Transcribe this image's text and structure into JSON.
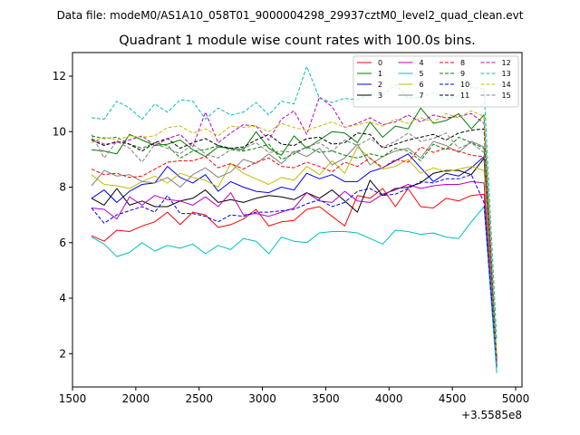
{
  "figure": {
    "suptitle": "Data file: modeM0/AS1A10_058T01_9000004298_29937cztM0_level2_quad_clean.evt"
  },
  "chart_data": {
    "type": "line",
    "title": "Quadrant 1 module wise count rates with 100.0s bins.",
    "xlabel": "",
    "ylabel": "",
    "x_offset_label": "+3.5585e8",
    "xlim": [
      1500,
      5050
    ],
    "ylim": [
      0.8,
      12.85
    ],
    "xticks": [
      1500,
      2000,
      2500,
      3000,
      3500,
      4000,
      4500,
      5000
    ],
    "yticks": [
      2,
      4,
      6,
      8,
      10,
      12
    ],
    "grid": false,
    "legend_placement": "top-right",
    "x": [
      1650,
      1750,
      1850,
      1950,
      2050,
      2150,
      2250,
      2350,
      2450,
      2550,
      2650,
      2750,
      2850,
      2950,
      3050,
      3150,
      3250,
      3350,
      3450,
      3550,
      3650,
      3750,
      3850,
      3950,
      4050,
      4150,
      4250,
      4350,
      4450,
      4550,
      4650,
      4750,
      4850
    ],
    "series": [
      {
        "name": "0",
        "color": "#ff0000",
        "dash": "solid",
        "values": [
          6.25,
          6.05,
          6.45,
          6.4,
          6.6,
          6.75,
          7.1,
          6.65,
          7.1,
          7.0,
          6.55,
          6.65,
          6.85,
          7.2,
          6.6,
          6.75,
          6.8,
          7.2,
          7.3,
          6.95,
          6.6,
          7.7,
          7.6,
          7.95,
          7.3,
          7.95,
          7.3,
          7.25,
          7.6,
          7.5,
          7.7,
          7.75,
          1.6
        ]
      },
      {
        "name": "1",
        "color": "#008000",
        "dash": "solid",
        "values": [
          9.35,
          9.3,
          9.2,
          9.9,
          9.7,
          9.5,
          9.55,
          9.7,
          9.35,
          9.1,
          9.45,
          9.4,
          9.35,
          10.0,
          9.4,
          9.15,
          9.85,
          9.4,
          9.7,
          10.0,
          9.95,
          9.6,
          10.35,
          9.8,
          10.2,
          10.1,
          10.85,
          10.3,
          10.4,
          10.65,
          10.1,
          10.6,
          1.7
        ]
      },
      {
        "name": "2",
        "color": "#0000ff",
        "dash": "solid",
        "values": [
          7.6,
          7.9,
          7.45,
          7.85,
          8.1,
          8.15,
          8.75,
          8.35,
          8.15,
          8.45,
          7.85,
          8.2,
          8.0,
          7.85,
          7.8,
          8.0,
          7.9,
          8.5,
          8.3,
          8.45,
          8.2,
          8.2,
          8.55,
          8.7,
          8.95,
          9.2,
          8.7,
          8.2,
          8.5,
          8.4,
          8.7,
          9.1,
          1.6
        ]
      },
      {
        "name": "3",
        "color": "#000000",
        "dash": "solid",
        "values": [
          7.6,
          7.35,
          7.95,
          7.35,
          7.5,
          7.3,
          7.3,
          7.5,
          7.6,
          7.9,
          7.45,
          7.55,
          7.45,
          7.6,
          7.7,
          7.65,
          7.55,
          7.8,
          7.6,
          7.9,
          7.5,
          7.1,
          8.25,
          7.7,
          7.95,
          8.0,
          8.15,
          8.5,
          8.6,
          8.6,
          8.45,
          9.05,
          1.5
        ]
      },
      {
        "name": "4",
        "color": "#bf00bf",
        "dash": "solid",
        "values": [
          7.25,
          7.2,
          6.85,
          7.65,
          7.35,
          7.7,
          7.55,
          7.5,
          7.35,
          7.65,
          7.3,
          7.8,
          7.0,
          7.05,
          6.95,
          7.1,
          7.25,
          7.8,
          7.5,
          7.45,
          7.85,
          7.5,
          7.45,
          7.75,
          7.9,
          8.1,
          7.95,
          8.05,
          8.1,
          8.1,
          8.2,
          8.15,
          1.6
        ]
      },
      {
        "name": "5",
        "color": "#00bfbf",
        "dash": "solid",
        "values": [
          6.2,
          5.95,
          5.5,
          5.65,
          6.0,
          5.7,
          5.9,
          5.8,
          5.95,
          5.6,
          5.9,
          5.75,
          6.15,
          6.05,
          5.6,
          6.2,
          6.05,
          6.0,
          6.35,
          6.4,
          6.4,
          6.35,
          6.15,
          5.95,
          6.45,
          6.4,
          6.3,
          6.35,
          6.2,
          6.15,
          6.75,
          7.3,
          1.3
        ]
      },
      {
        "name": "6",
        "color": "#bfbf00",
        "dash": "solid",
        "values": [
          8.45,
          8.1,
          8.05,
          7.95,
          8.2,
          8.4,
          8.15,
          8.5,
          8.35,
          8.25,
          8.0,
          8.85,
          8.5,
          8.3,
          8.1,
          8.35,
          8.25,
          8.75,
          8.45,
          8.95,
          8.5,
          9.45,
          9.05,
          8.65,
          8.75,
          9.0,
          8.5,
          8.7,
          8.55,
          8.65,
          8.75,
          8.6,
          1.8
        ]
      },
      {
        "name": "7",
        "color": "#808080",
        "dash": "solid",
        "values": [
          8.05,
          8.6,
          8.4,
          8.45,
          8.2,
          8.15,
          8.35,
          8.0,
          8.45,
          8.7,
          8.35,
          8.55,
          9.0,
          8.85,
          9.2,
          8.85,
          9.3,
          9.1,
          9.4,
          8.8,
          9.05,
          9.55,
          8.8,
          9.1,
          9.3,
          9.4,
          9.05,
          9.65,
          9.5,
          9.25,
          9.65,
          9.45,
          1.7
        ]
      },
      {
        "name": "8",
        "color": "#ff0000",
        "dash": "dashed",
        "values": [
          8.65,
          8.45,
          8.5,
          8.35,
          8.4,
          8.65,
          8.9,
          8.95,
          8.95,
          9.1,
          8.7,
          8.85,
          8.65,
          8.9,
          9.05,
          8.75,
          8.7,
          8.9,
          8.75,
          8.55,
          8.9,
          8.75,
          9.05,
          8.7,
          9.0,
          8.9,
          9.45,
          9.25,
          9.4,
          9.3,
          9.15,
          9.1,
          1.8
        ]
      },
      {
        "name": "9",
        "color": "#008000",
        "dash": "dashed",
        "values": [
          9.85,
          9.75,
          9.8,
          9.55,
          9.4,
          9.6,
          9.5,
          9.05,
          9.3,
          9.35,
          9.5,
          9.35,
          9.3,
          9.4,
          9.55,
          9.0,
          9.2,
          9.45,
          9.25,
          9.3,
          9.15,
          9.05,
          9.2,
          9.1,
          9.4,
          9.3,
          8.95,
          9.55,
          9.35,
          9.8,
          9.6,
          9.4,
          1.9
        ]
      },
      {
        "name": "10",
        "color": "#0000ff",
        "dash": "dashed",
        "values": [
          7.25,
          6.7,
          7.0,
          7.15,
          7.3,
          7.1,
          7.7,
          7.05,
          7.05,
          6.95,
          6.75,
          7.0,
          6.95,
          7.1,
          7.1,
          7.15,
          7.2,
          7.4,
          7.55,
          7.3,
          7.45,
          7.85,
          7.95,
          7.7,
          7.75,
          7.95,
          8.2,
          8.15,
          8.3,
          8.3,
          8.45,
          7.45,
          1.6
        ]
      },
      {
        "name": "11",
        "color": "#000000",
        "dash": "dashed",
        "values": [
          9.7,
          9.5,
          9.65,
          9.55,
          9.3,
          9.6,
          9.75,
          9.4,
          9.6,
          9.75,
          9.5,
          9.4,
          9.45,
          9.7,
          9.9,
          9.55,
          9.5,
          9.75,
          9.8,
          9.55,
          9.6,
          9.95,
          9.9,
          9.4,
          9.55,
          9.7,
          9.8,
          9.9,
          9.7,
          9.95,
          10.05,
          10.1,
          1.8
        ]
      },
      {
        "name": "12",
        "color": "#bf00bf",
        "dash": "dashed",
        "values": [
          9.75,
          9.55,
          9.6,
          9.7,
          9.85,
          9.5,
          9.75,
          9.9,
          9.45,
          10.7,
          9.6,
          9.95,
          10.25,
          10.2,
          9.7,
          10.45,
          10.75,
          9.9,
          11.25,
          10.9,
          10.15,
          10.3,
          10.5,
          10.25,
          10.35,
          10.6,
          10.35,
          10.6,
          10.5,
          10.55,
          10.65,
          10.3,
          1.7
        ]
      },
      {
        "name": "13",
        "color": "#00bfbf",
        "dash": "dashed",
        "values": [
          10.5,
          10.45,
          11.1,
          10.85,
          10.45,
          11.0,
          10.7,
          11.15,
          11.1,
          10.45,
          10.85,
          10.6,
          10.7,
          11.05,
          10.6,
          11.1,
          11.0,
          12.35,
          11.2,
          11.05,
          11.2,
          11.15,
          11.35,
          11.3,
          11.7,
          11.2,
          11.25,
          11.4,
          11.15,
          11.3,
          11.6,
          11.55,
          2.5
        ]
      },
      {
        "name": "14",
        "color": "#bfbf00",
        "dash": "dashed",
        "values": [
          9.6,
          9.8,
          9.7,
          9.85,
          9.8,
          9.85,
          10.15,
          10.2,
          9.95,
          10.1,
          9.85,
          10.2,
          10.15,
          10.2,
          10.0,
          10.3,
          10.15,
          10.05,
          10.2,
          10.35,
          10.15,
          10.25,
          10.35,
          10.2,
          10.45,
          10.3,
          10.5,
          10.35,
          10.65,
          10.5,
          10.75,
          10.55,
          2.0
        ]
      },
      {
        "name": "15",
        "color": "#808080",
        "dash": "dashed",
        "values": [
          9.9,
          9.05,
          9.65,
          9.4,
          8.9,
          9.55,
          9.4,
          9.2,
          9.55,
          9.2,
          9.05,
          9.35,
          9.4,
          9.6,
          9.25,
          9.3,
          9.25,
          9.45,
          9.6,
          9.3,
          9.7,
          9.5,
          9.75,
          9.45,
          9.65,
          9.95,
          9.65,
          9.75,
          9.95,
          9.4,
          9.6,
          9.25,
          1.5
        ]
      }
    ]
  }
}
